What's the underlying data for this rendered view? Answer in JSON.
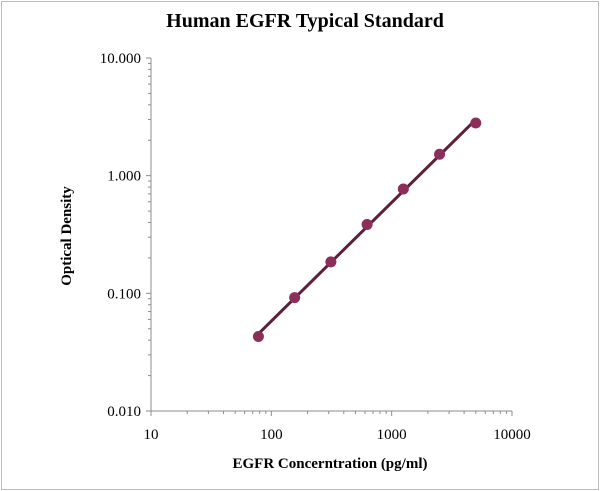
{
  "chart_data": {
    "type": "scatter",
    "title": "Human EGFR Typical Standard",
    "xlabel": "EGFR Concerntration (pg/ml)",
    "ylabel": "Optical Density",
    "x_scale": "log",
    "y_scale": "log",
    "xlim": [
      10,
      10000
    ],
    "ylim": [
      0.01,
      10
    ],
    "x_ticks": [
      "10",
      "100",
      "1000",
      "10000"
    ],
    "y_ticks": [
      "10.000",
      "1.000",
      "0.100",
      "0.010"
    ],
    "grid": false,
    "legend": "none",
    "series": [
      {
        "x": [
          78.125,
          156.25,
          312.5,
          625,
          1250,
          2500,
          5000
        ],
        "y": [
          0.043,
          0.092,
          0.185,
          0.385,
          0.77,
          1.52,
          2.8
        ],
        "trendline": "fitted line",
        "color": "#8c2e5a",
        "line_color": "#5c1f3c"
      }
    ]
  }
}
